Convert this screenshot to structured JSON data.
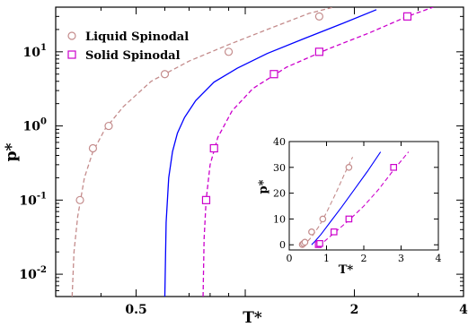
{
  "chart_data": [
    {
      "type": "line",
      "role": "main",
      "xlabel": "T*",
      "ylabel": "p*",
      "xscale": "log",
      "yscale": "log",
      "xlim": [
        0.3,
        4
      ],
      "ylim": [
        0.005,
        40
      ],
      "x_ticks": [
        0.5,
        1,
        2,
        4
      ],
      "x_tick_labels": [
        "0.5",
        "",
        "2",
        "4"
      ],
      "y_ticks": [
        0.01,
        0.1,
        1,
        10
      ],
      "y_tick_labels": [
        "10",
        "10",
        "10",
        "10"
      ],
      "y_tick_exponents": [
        "-2",
        "-1",
        "0",
        "1"
      ],
      "legend": {
        "position": "top-left",
        "entries": [
          "Liquid Spinodal",
          "Solid Spinodal"
        ]
      },
      "series": [
        {
          "name": "Liquid Spinodal",
          "style": "dashed",
          "color": "#c48c8c",
          "marker": "circle",
          "x": [
            0.333,
            0.337,
            0.345,
            0.36,
            0.38,
            0.41,
            0.46,
            0.55,
            0.7,
            0.9,
            1.15,
            1.5,
            1.75
          ],
          "y": [
            0.005,
            0.02,
            0.06,
            0.2,
            0.45,
            0.9,
            1.8,
            4.0,
            7.5,
            12.5,
            20,
            33,
            40
          ],
          "marker_x": [
            0.35,
            0.38,
            0.42,
            0.6,
            0.9,
            1.6
          ],
          "marker_y": [
            0.1,
            0.5,
            1.0,
            5.0,
            10.0,
            30.0
          ]
        },
        {
          "name": "",
          "style": "solid",
          "color": "#0000ff",
          "x": [
            0.6,
            0.605,
            0.615,
            0.63,
            0.65,
            0.68,
            0.73,
            0.82,
            0.95,
            1.15,
            1.45,
            1.85,
            2.3
          ],
          "y": [
            0.005,
            0.05,
            0.2,
            0.45,
            0.8,
            1.3,
            2.2,
            3.9,
            6.0,
            9.5,
            15,
            24,
            37
          ]
        },
        {
          "name": "Solid Spinodal",
          "style": "dashed",
          "color": "#cc00cc",
          "marker": "square",
          "x": [
            0.765,
            0.77,
            0.78,
            0.8,
            0.84,
            0.92,
            1.05,
            1.3,
            1.7,
            2.2,
            2.8,
            3.3
          ],
          "y": [
            0.005,
            0.03,
            0.1,
            0.3,
            0.7,
            1.6,
            3.2,
            6.2,
            11,
            18,
            30,
            40
          ],
          "marker_x": [
            0.78,
            0.82,
            1.2,
            1.6,
            2.8
          ],
          "marker_y": [
            0.1,
            0.5,
            5.0,
            10.0,
            30.0
          ]
        }
      ]
    },
    {
      "type": "line",
      "role": "inset",
      "xlabel": "T*",
      "ylabel": "p*",
      "xlim": [
        0,
        4
      ],
      "ylim": [
        -2,
        40
      ],
      "x_ticks": [
        0,
        1,
        2,
        3,
        4
      ],
      "x_tick_labels": [
        "0",
        "1",
        "2",
        "3",
        "4"
      ],
      "y_ticks": [
        0,
        10,
        20,
        30,
        40
      ],
      "y_tick_labels": [
        "0",
        "10",
        "20",
        "30",
        "40"
      ],
      "series": [
        {
          "name": "Liquid Spinodal",
          "style": "dashed",
          "color": "#c48c8c",
          "marker": "circle",
          "x": [
            0.33,
            0.45,
            0.6,
            0.8,
            1.0,
            1.25,
            1.5,
            1.7
          ],
          "y": [
            0,
            0.7,
            3.0,
            7.2,
            12.5,
            20,
            28,
            34
          ],
          "marker_x": [
            0.35,
            0.38,
            0.42,
            0.6,
            0.9,
            1.6
          ],
          "marker_y": [
            0.1,
            0.5,
            1.0,
            5.0,
            10.0,
            30.0
          ]
        },
        {
          "name": "",
          "style": "solid",
          "color": "#0000ff",
          "x": [
            0.6,
            0.7,
            0.85,
            1.1,
            1.4,
            1.75,
            2.1,
            2.45
          ],
          "y": [
            0,
            1.5,
            4.0,
            8.8,
            14.5,
            21.5,
            28.5,
            36
          ],
          "marker_x": [],
          "marker_y": []
        },
        {
          "name": "Solid Spinodal",
          "style": "dashed",
          "color": "#cc00cc",
          "marker": "square",
          "x": [
            0.77,
            0.9,
            1.2,
            1.6,
            2.0,
            2.4,
            2.8,
            3.2
          ],
          "y": [
            0,
            0.8,
            4.5,
            9.5,
            15,
            21.5,
            29,
            36
          ],
          "marker_x": [
            0.78,
            0.82,
            1.2,
            1.6,
            2.8
          ],
          "marker_y": [
            0.1,
            0.5,
            5.0,
            10.0,
            30.0
          ]
        }
      ]
    }
  ]
}
